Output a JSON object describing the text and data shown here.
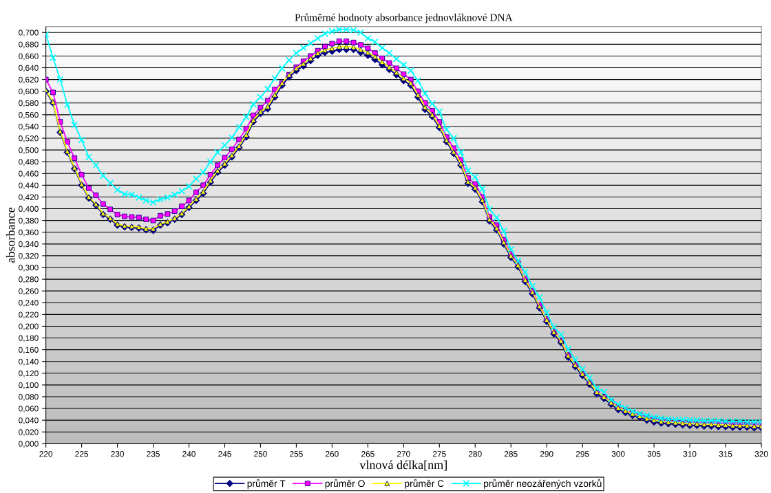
{
  "chart_data": {
    "type": "line",
    "title": "Průměrné hodnoty absorbance jednovláknové DNA",
    "xlabel": "vlnová délka[nm]",
    "ylabel": "absorbance",
    "x": [
      220,
      221,
      222,
      223,
      224,
      225,
      226,
      227,
      228,
      229,
      230,
      231,
      232,
      233,
      234,
      235,
      236,
      237,
      238,
      239,
      240,
      241,
      242,
      243,
      244,
      245,
      246,
      247,
      248,
      249,
      250,
      251,
      252,
      253,
      254,
      255,
      256,
      257,
      258,
      259,
      260,
      261,
      262,
      263,
      264,
      265,
      266,
      267,
      268,
      269,
      270,
      271,
      272,
      273,
      274,
      275,
      276,
      277,
      278,
      279,
      280,
      281,
      282,
      283,
      284,
      285,
      286,
      287,
      288,
      289,
      290,
      291,
      292,
      293,
      294,
      295,
      296,
      297,
      298,
      299,
      300,
      301,
      302,
      303,
      304,
      305,
      306,
      307,
      308,
      309,
      310,
      311,
      312,
      313,
      314,
      315,
      316,
      317,
      318,
      319,
      320
    ],
    "series": [
      {
        "name": "průměr T",
        "color": "#000080",
        "marker": "diamond",
        "values": [
          0.6,
          0.58,
          0.53,
          0.496,
          0.468,
          0.44,
          0.418,
          0.406,
          0.39,
          0.382,
          0.372,
          0.369,
          0.368,
          0.367,
          0.364,
          0.363,
          0.372,
          0.376,
          0.382,
          0.39,
          0.402,
          0.414,
          0.426,
          0.445,
          0.462,
          0.474,
          0.488,
          0.504,
          0.522,
          0.548,
          0.562,
          0.57,
          0.59,
          0.61,
          0.624,
          0.635,
          0.643,
          0.652,
          0.661,
          0.666,
          0.668,
          0.671,
          0.671,
          0.671,
          0.666,
          0.661,
          0.654,
          0.645,
          0.637,
          0.628,
          0.618,
          0.61,
          0.59,
          0.569,
          0.557,
          0.538,
          0.514,
          0.494,
          0.474,
          0.443,
          0.433,
          0.412,
          0.379,
          0.364,
          0.34,
          0.317,
          0.301,
          0.276,
          0.255,
          0.231,
          0.208,
          0.187,
          0.172,
          0.147,
          0.131,
          0.116,
          0.101,
          0.085,
          0.077,
          0.067,
          0.058,
          0.053,
          0.048,
          0.045,
          0.04,
          0.037,
          0.035,
          0.034,
          0.033,
          0.032,
          0.031,
          0.031,
          0.03,
          0.03,
          0.029,
          0.029,
          0.028,
          0.028,
          0.028,
          0.027,
          0.027
        ]
      },
      {
        "name": "průměr O",
        "color": "#ff00ff",
        "marker": "square",
        "values": [
          0.62,
          0.598,
          0.548,
          0.514,
          0.486,
          0.458,
          0.435,
          0.423,
          0.408,
          0.399,
          0.39,
          0.387,
          0.386,
          0.385,
          0.382,
          0.38,
          0.388,
          0.391,
          0.396,
          0.404,
          0.414,
          0.428,
          0.44,
          0.458,
          0.474,
          0.487,
          0.501,
          0.518,
          0.536,
          0.559,
          0.572,
          0.584,
          0.603,
          0.614,
          0.628,
          0.641,
          0.651,
          0.66,
          0.669,
          0.676,
          0.681,
          0.685,
          0.685,
          0.683,
          0.679,
          0.673,
          0.665,
          0.656,
          0.648,
          0.639,
          0.629,
          0.62,
          0.6,
          0.58,
          0.567,
          0.548,
          0.522,
          0.503,
          0.483,
          0.452,
          0.442,
          0.42,
          0.386,
          0.372,
          0.347,
          0.323,
          0.307,
          0.281,
          0.26,
          0.236,
          0.212,
          0.191,
          0.176,
          0.151,
          0.135,
          0.119,
          0.104,
          0.088,
          0.08,
          0.071,
          0.062,
          0.057,
          0.052,
          0.049,
          0.045,
          0.042,
          0.04,
          0.039,
          0.038,
          0.037,
          0.036,
          0.036,
          0.035,
          0.035,
          0.035,
          0.034,
          0.034,
          0.034,
          0.033,
          0.033,
          0.033
        ]
      },
      {
        "name": "průměr C",
        "color": "#ffff00",
        "marker": "triangle",
        "values": [
          0.602,
          0.582,
          0.532,
          0.498,
          0.47,
          0.442,
          0.42,
          0.408,
          0.392,
          0.384,
          0.374,
          0.371,
          0.37,
          0.369,
          0.366,
          0.366,
          0.374,
          0.378,
          0.384,
          0.392,
          0.404,
          0.417,
          0.429,
          0.448,
          0.465,
          0.477,
          0.491,
          0.507,
          0.526,
          0.551,
          0.565,
          0.574,
          0.594,
          0.614,
          0.628,
          0.639,
          0.647,
          0.656,
          0.665,
          0.67,
          0.673,
          0.676,
          0.676,
          0.675,
          0.671,
          0.666,
          0.659,
          0.65,
          0.641,
          0.632,
          0.622,
          0.614,
          0.594,
          0.573,
          0.56,
          0.541,
          0.517,
          0.497,
          0.477,
          0.446,
          0.436,
          0.415,
          0.382,
          0.367,
          0.343,
          0.32,
          0.304,
          0.279,
          0.258,
          0.234,
          0.211,
          0.19,
          0.175,
          0.15,
          0.134,
          0.119,
          0.104,
          0.088,
          0.08,
          0.07,
          0.061,
          0.056,
          0.051,
          0.047,
          0.043,
          0.04,
          0.038,
          0.037,
          0.036,
          0.035,
          0.034,
          0.034,
          0.033,
          0.033,
          0.032,
          0.032,
          0.031,
          0.031,
          0.031,
          0.03,
          0.03
        ]
      },
      {
        "name": "průměr neozářených vzorků",
        "color": "#00ffff",
        "marker": "cross",
        "values": [
          0.697,
          0.657,
          0.62,
          0.577,
          0.543,
          0.517,
          0.488,
          0.474,
          0.456,
          0.444,
          0.432,
          0.425,
          0.424,
          0.419,
          0.414,
          0.411,
          0.416,
          0.419,
          0.424,
          0.43,
          0.438,
          0.451,
          0.462,
          0.48,
          0.496,
          0.508,
          0.521,
          0.539,
          0.556,
          0.578,
          0.59,
          0.604,
          0.622,
          0.639,
          0.653,
          0.665,
          0.674,
          0.682,
          0.69,
          0.698,
          0.702,
          0.705,
          0.705,
          0.704,
          0.7,
          0.69,
          0.684,
          0.674,
          0.665,
          0.655,
          0.645,
          0.635,
          0.618,
          0.596,
          0.579,
          0.565,
          0.535,
          0.52,
          0.496,
          0.465,
          0.454,
          0.434,
          0.399,
          0.385,
          0.362,
          0.331,
          0.311,
          0.292,
          0.268,
          0.249,
          0.223,
          0.198,
          0.186,
          0.161,
          0.143,
          0.127,
          0.112,
          0.094,
          0.088,
          0.075,
          0.067,
          0.061,
          0.055,
          0.051,
          0.048,
          0.045,
          0.043,
          0.042,
          0.041,
          0.041,
          0.04,
          0.04,
          0.039,
          0.039,
          0.039,
          0.038,
          0.038,
          0.038,
          0.037,
          0.037,
          0.037
        ]
      }
    ],
    "xlim": [
      220,
      320
    ],
    "ylim": [
      0,
      0.71
    ],
    "xticks": [
      220,
      225,
      230,
      235,
      240,
      245,
      250,
      255,
      260,
      265,
      270,
      275,
      280,
      285,
      290,
      295,
      300,
      305,
      310,
      315,
      320
    ],
    "yticks": [
      {
        "value": 0,
        "label": "0,000"
      },
      {
        "value": 0.02,
        "label": "0,020"
      },
      {
        "value": 0.04,
        "label": "0,040"
      },
      {
        "value": 0.06,
        "label": "0,060"
      },
      {
        "value": 0.08,
        "label": "0,080"
      },
      {
        "value": 0.1,
        "label": "0,100"
      },
      {
        "value": 0.12,
        "label": "0,120"
      },
      {
        "value": 0.14,
        "label": "0,140"
      },
      {
        "value": 0.16,
        "label": "0,160"
      },
      {
        "value": 0.18,
        "label": "0,180"
      },
      {
        "value": 0.2,
        "label": "0,200"
      },
      {
        "value": 0.22,
        "label": "0,220"
      },
      {
        "value": 0.24,
        "label": "0,240"
      },
      {
        "value": 0.26,
        "label": "0,260"
      },
      {
        "value": 0.28,
        "label": "0,280"
      },
      {
        "value": 0.3,
        "label": "0,300"
      },
      {
        "value": 0.32,
        "label": "0,320"
      },
      {
        "value": 0.34,
        "label": "0,340"
      },
      {
        "value": 0.36,
        "label": "0,360"
      },
      {
        "value": 0.38,
        "label": "0,380"
      },
      {
        "value": 0.4,
        "label": "0,400"
      },
      {
        "value": 0.42,
        "label": "0,420"
      },
      {
        "value": 0.44,
        "label": "0,440"
      },
      {
        "value": 0.46,
        "label": "0,460"
      },
      {
        "value": 0.48,
        "label": "0,480"
      },
      {
        "value": 0.5,
        "label": "0,500"
      },
      {
        "value": 0.52,
        "label": "0,520"
      },
      {
        "value": 0.54,
        "label": "0,540"
      },
      {
        "value": 0.56,
        "label": "0,560"
      },
      {
        "value": 0.58,
        "label": "0,580"
      },
      {
        "value": 0.6,
        "label": "0,600"
      },
      {
        "value": 0.62,
        "label": "0,620"
      },
      {
        "value": 0.64,
        "label": "0,640"
      },
      {
        "value": 0.66,
        "label": "0,660"
      },
      {
        "value": 0.68,
        "label": "0,680"
      },
      {
        "value": 0.7,
        "label": "0,700"
      }
    ],
    "grid": "y",
    "legend": "bottom",
    "line_style": "solid"
  }
}
